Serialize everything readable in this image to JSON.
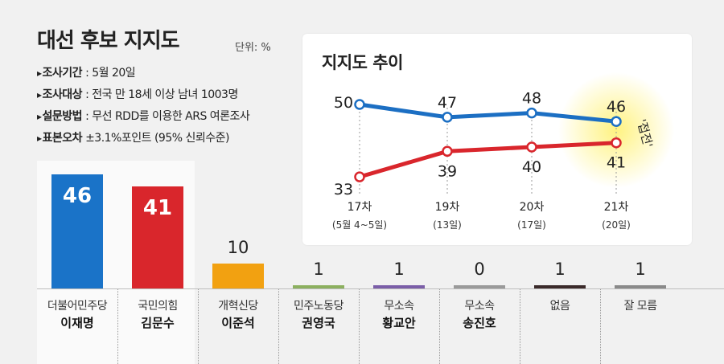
{
  "header": {
    "title": "대선 후보 지지도",
    "unit": "단위: %"
  },
  "survey_info": [
    {
      "label": "조사기간",
      "value": ": 5월 20일"
    },
    {
      "label": "조사대상",
      "value": ": 전국 만 18세 이상 남녀 1003명"
    },
    {
      "label": "설문방법",
      "value": ": 무선 RDD를 이용한 ARS 여론조사"
    },
    {
      "label": "표본오차",
      "value": "±3.1%포인트 (95% 신뢰수준)"
    }
  ],
  "colors": {
    "lee": "#1a73c8",
    "kim": "#d9262c",
    "lee_line": "#1c6fc3",
    "kim_line": "#d9262c",
    "glow": "#fff27a"
  },
  "chart_data": [
    {
      "type": "bar",
      "title": "",
      "categories": [
        "이재명",
        "김문수",
        "이준석",
        "권영국",
        "황교안",
        "송진호",
        "없음",
        "잘 모름"
      ],
      "parties": [
        "더불어민주당",
        "국민의힘",
        "개혁신당",
        "민주노동당",
        "무소속",
        "무소속",
        "",
        ""
      ],
      "names": [
        "이재명",
        "김문수",
        "이준석",
        "권영국",
        "황교안",
        "송진호",
        "없음",
        "잘 모름"
      ],
      "values": [
        46,
        41,
        10,
        1,
        1,
        0,
        1,
        1
      ],
      "bar_colors": [
        "#1a73c8",
        "#d9262c",
        "#f2a111",
        "#8cb05f",
        "#7b5ea8",
        "#9a9a9a",
        "#3a2a2a",
        "#8a8a8a"
      ],
      "value_labels": [
        "46",
        "41",
        "10",
        "1",
        "1",
        "0",
        "1",
        "1"
      ],
      "ylim": [
        0,
        50
      ]
    },
    {
      "type": "line",
      "title": "지지도 추이",
      "x": [
        "17차",
        "19차",
        "20차",
        "21차"
      ],
      "x_sub": [
        "(5월 4~5일)",
        "(13일)",
        "(17일)",
        "(20일)"
      ],
      "series": [
        {
          "name": "이재명",
          "values": [
            50,
            47,
            48,
            46
          ]
        },
        {
          "name": "김문수",
          "values": [
            33,
            39,
            40,
            41
          ]
        }
      ],
      "annotation": "'접전'",
      "ylim": [
        30,
        52
      ]
    }
  ]
}
